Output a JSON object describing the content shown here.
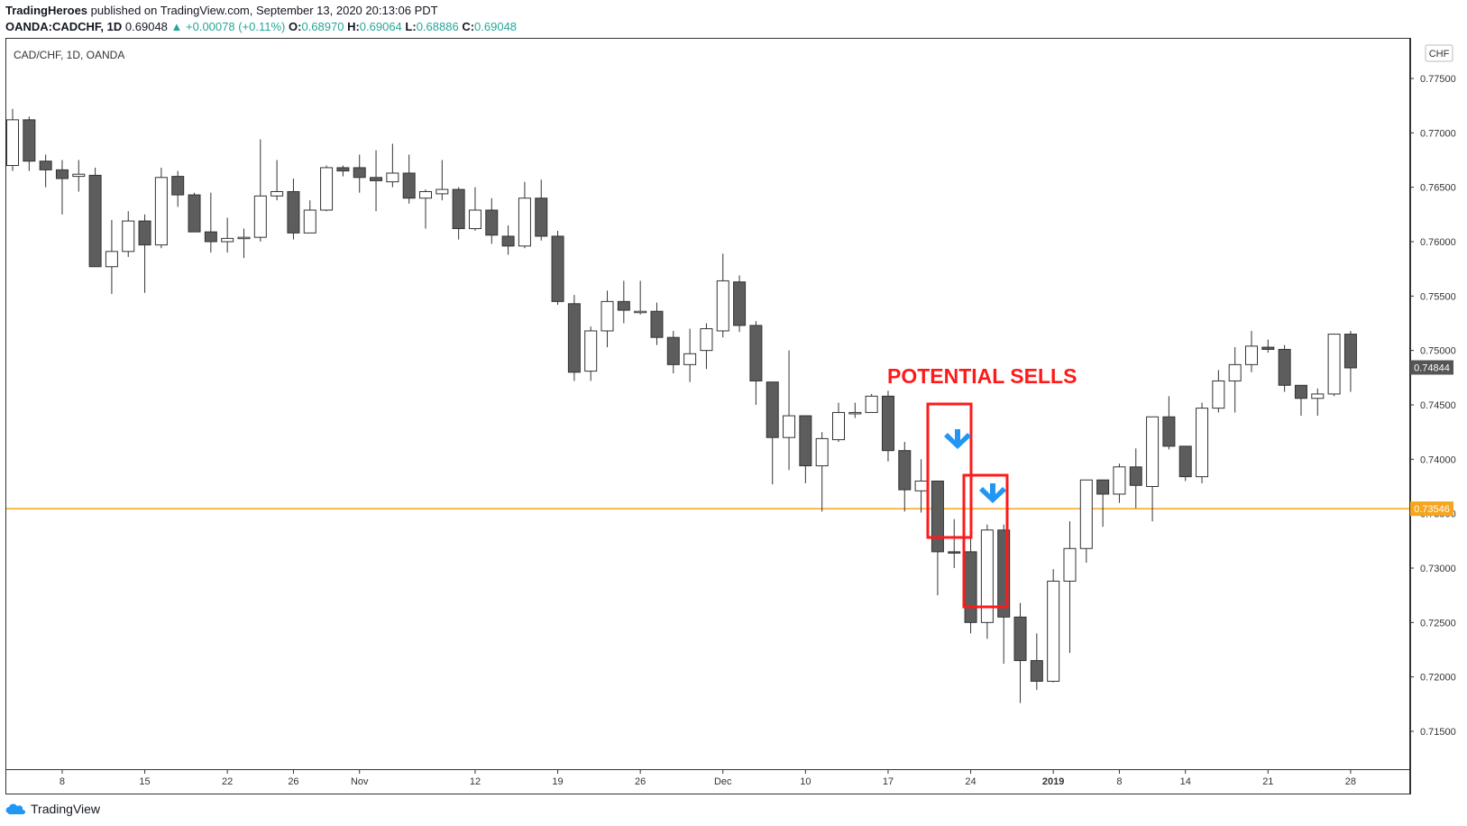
{
  "header": {
    "author": "TradingHeroes",
    "published_text": "published on TradingView.com, September 13, 2020 20:13:06 PDT",
    "symbol": "OANDA:CADCHF, 1D",
    "last": "0.69048",
    "change": "▲ +0.00078 (+0.11%)",
    "o_label": "O:",
    "o_value": "0.68970",
    "h_label": "H:",
    "h_value": "0.69064",
    "l_label": "L:",
    "l_value": "0.68886",
    "c_label": "C:",
    "c_value": "0.69048"
  },
  "pane": {
    "legend": "CAD/CHF, 1D, OANDA",
    "currency_button": "CHF"
  },
  "annotation": {
    "text": "POTENTIAL SELLS"
  },
  "footer": {
    "brand": "TradingView"
  },
  "colors": {
    "bear_fill": "#5d5d5d",
    "bull_fill": "#ffffff",
    "candle_border": "#333333",
    "hline": "#f7a51c",
    "annotation": "#ff1a1a",
    "arrow": "#2196f3"
  },
  "chart_data": {
    "type": "candlestick",
    "title": "CAD/CHF, 1D, OANDA",
    "ylim": [
      0.7125,
      0.7805
    ],
    "y_ticks": [
      "0.77500",
      "0.77000",
      "0.76500",
      "0.76000",
      "0.75500",
      "0.75000",
      "0.74500",
      "0.74000",
      "0.73500",
      "0.73000",
      "0.72500",
      "0.72000",
      "0.71500"
    ],
    "x_ticks": [
      {
        "label": "8",
        "i": 3
      },
      {
        "label": "15",
        "i": 8
      },
      {
        "label": "22",
        "i": 13
      },
      {
        "label": "26",
        "i": 17
      },
      {
        "label": "Nov",
        "i": 21
      },
      {
        "label": "12",
        "i": 28
      },
      {
        "label": "19",
        "i": 33
      },
      {
        "label": "26",
        "i": 38
      },
      {
        "label": "Dec",
        "i": 43
      },
      {
        "label": "10",
        "i": 48
      },
      {
        "label": "17",
        "i": 53
      },
      {
        "label": "24",
        "i": 58
      },
      {
        "label": "2019",
        "i": 63
      },
      {
        "label": "8",
        "i": 67
      },
      {
        "label": "14",
        "i": 71
      },
      {
        "label": "21",
        "i": 76
      },
      {
        "label": "28",
        "i": 81
      }
    ],
    "current_price_label": "0.74844",
    "current_price": 0.74844,
    "hline_label": "0.73546",
    "hline": 0.73546,
    "candles": [
      {
        "o": 0.767,
        "h": 0.7722,
        "l": 0.7665,
        "c": 0.7712
      },
      {
        "o": 0.7712,
        "h": 0.7715,
        "l": 0.7665,
        "c": 0.7674
      },
      {
        "o": 0.7674,
        "h": 0.768,
        "l": 0.765,
        "c": 0.7666
      },
      {
        "o": 0.7666,
        "h": 0.7675,
        "l": 0.7625,
        "c": 0.7658
      },
      {
        "o": 0.766,
        "h": 0.7675,
        "l": 0.7646,
        "c": 0.7662
      },
      {
        "o": 0.7661,
        "h": 0.7668,
        "l": 0.7577,
        "c": 0.7577
      },
      {
        "o": 0.7577,
        "h": 0.762,
        "l": 0.7552,
        "c": 0.7591
      },
      {
        "o": 0.7591,
        "h": 0.7628,
        "l": 0.7586,
        "c": 0.7619
      },
      {
        "o": 0.7619,
        "h": 0.7625,
        "l": 0.7553,
        "c": 0.7597
      },
      {
        "o": 0.7597,
        "h": 0.7668,
        "l": 0.7594,
        "c": 0.7659
      },
      {
        "o": 0.766,
        "h": 0.7665,
        "l": 0.7632,
        "c": 0.7643
      },
      {
        "o": 0.7643,
        "h": 0.7645,
        "l": 0.7609,
        "c": 0.7609
      },
      {
        "o": 0.7609,
        "h": 0.7645,
        "l": 0.759,
        "c": 0.76
      },
      {
        "o": 0.76,
        "h": 0.7622,
        "l": 0.759,
        "c": 0.7603
      },
      {
        "o": 0.7603,
        "h": 0.7612,
        "l": 0.7585,
        "c": 0.7604
      },
      {
        "o": 0.7604,
        "h": 0.7694,
        "l": 0.76,
        "c": 0.7642
      },
      {
        "o": 0.7642,
        "h": 0.7675,
        "l": 0.7638,
        "c": 0.7646
      },
      {
        "o": 0.7646,
        "h": 0.7658,
        "l": 0.7602,
        "c": 0.7608
      },
      {
        "o": 0.7608,
        "h": 0.7638,
        "l": 0.7608,
        "c": 0.7629
      },
      {
        "o": 0.7629,
        "h": 0.767,
        "l": 0.7628,
        "c": 0.7668
      },
      {
        "o": 0.7668,
        "h": 0.767,
        "l": 0.766,
        "c": 0.7665
      },
      {
        "o": 0.7668,
        "h": 0.768,
        "l": 0.7645,
        "c": 0.7659
      },
      {
        "o": 0.7659,
        "h": 0.7684,
        "l": 0.7628,
        "c": 0.7656
      },
      {
        "o": 0.7655,
        "h": 0.769,
        "l": 0.765,
        "c": 0.7663
      },
      {
        "o": 0.7663,
        "h": 0.768,
        "l": 0.7635,
        "c": 0.764
      },
      {
        "o": 0.764,
        "h": 0.7648,
        "l": 0.7612,
        "c": 0.7646
      },
      {
        "o": 0.7644,
        "h": 0.7675,
        "l": 0.7638,
        "c": 0.7648
      },
      {
        "o": 0.7648,
        "h": 0.765,
        "l": 0.7602,
        "c": 0.7612
      },
      {
        "o": 0.7612,
        "h": 0.765,
        "l": 0.761,
        "c": 0.7629
      },
      {
        "o": 0.7629,
        "h": 0.764,
        "l": 0.7598,
        "c": 0.7606
      },
      {
        "o": 0.7605,
        "h": 0.7615,
        "l": 0.7588,
        "c": 0.7596
      },
      {
        "o": 0.7596,
        "h": 0.7655,
        "l": 0.7594,
        "c": 0.764
      },
      {
        "o": 0.764,
        "h": 0.7657,
        "l": 0.7601,
        "c": 0.7605
      },
      {
        "o": 0.7605,
        "h": 0.761,
        "l": 0.7542,
        "c": 0.7545
      },
      {
        "o": 0.7543,
        "h": 0.7551,
        "l": 0.7472,
        "c": 0.748
      },
      {
        "o": 0.7481,
        "h": 0.7522,
        "l": 0.7472,
        "c": 0.7518
      },
      {
        "o": 0.7518,
        "h": 0.7555,
        "l": 0.7503,
        "c": 0.7545
      },
      {
        "o": 0.7545,
        "h": 0.7564,
        "l": 0.7525,
        "c": 0.7537
      },
      {
        "o": 0.7536,
        "h": 0.7564,
        "l": 0.7533,
        "c": 0.7536
      },
      {
        "o": 0.7536,
        "h": 0.7544,
        "l": 0.7505,
        "c": 0.7512
      },
      {
        "o": 0.7512,
        "h": 0.7518,
        "l": 0.7479,
        "c": 0.7487
      },
      {
        "o": 0.7487,
        "h": 0.752,
        "l": 0.7471,
        "c": 0.7497
      },
      {
        "o": 0.75,
        "h": 0.7525,
        "l": 0.7483,
        "c": 0.752
      },
      {
        "o": 0.7518,
        "h": 0.7589,
        "l": 0.7512,
        "c": 0.7564
      },
      {
        "o": 0.7563,
        "h": 0.7569,
        "l": 0.7517,
        "c": 0.7523
      },
      {
        "o": 0.7523,
        "h": 0.7527,
        "l": 0.745,
        "c": 0.7472
      },
      {
        "o": 0.7471,
        "h": 0.7471,
        "l": 0.7377,
        "c": 0.742
      },
      {
        "o": 0.742,
        "h": 0.75,
        "l": 0.739,
        "c": 0.744
      },
      {
        "o": 0.744,
        "h": 0.744,
        "l": 0.7378,
        "c": 0.7394
      },
      {
        "o": 0.7394,
        "h": 0.7425,
        "l": 0.7352,
        "c": 0.7419
      },
      {
        "o": 0.7418,
        "h": 0.7452,
        "l": 0.7416,
        "c": 0.7443
      },
      {
        "o": 0.7442,
        "h": 0.7452,
        "l": 0.7438,
        "c": 0.7443
      },
      {
        "o": 0.7443,
        "h": 0.746,
        "l": 0.7443,
        "c": 0.7458
      },
      {
        "o": 0.7458,
        "h": 0.7463,
        "l": 0.7398,
        "c": 0.7408
      },
      {
        "o": 0.7408,
        "h": 0.7416,
        "l": 0.7352,
        "c": 0.7372
      },
      {
        "o": 0.7371,
        "h": 0.74,
        "l": 0.7351,
        "c": 0.738
      },
      {
        "o": 0.738,
        "h": 0.738,
        "l": 0.7275,
        "c": 0.7315
      },
      {
        "o": 0.7315,
        "h": 0.7345,
        "l": 0.73,
        "c": 0.7314
      },
      {
        "o": 0.7315,
        "h": 0.733,
        "l": 0.724,
        "c": 0.725
      },
      {
        "o": 0.725,
        "h": 0.734,
        "l": 0.7235,
        "c": 0.7335
      },
      {
        "o": 0.7335,
        "h": 0.734,
        "l": 0.7212,
        "c": 0.7255
      },
      {
        "o": 0.7255,
        "h": 0.7268,
        "l": 0.7176,
        "c": 0.7215
      },
      {
        "o": 0.7215,
        "h": 0.724,
        "l": 0.7188,
        "c": 0.7196
      },
      {
        "o": 0.7196,
        "h": 0.7299,
        "l": 0.7195,
        "c": 0.7288
      },
      {
        "o": 0.7288,
        "h": 0.7343,
        "l": 0.7222,
        "c": 0.7318
      },
      {
        "o": 0.7318,
        "h": 0.7381,
        "l": 0.7305,
        "c": 0.7381
      },
      {
        "o": 0.7381,
        "h": 0.7381,
        "l": 0.7338,
        "c": 0.7368
      },
      {
        "o": 0.7368,
        "h": 0.7396,
        "l": 0.736,
        "c": 0.7393
      },
      {
        "o": 0.7393,
        "h": 0.741,
        "l": 0.7355,
        "c": 0.7376
      },
      {
        "o": 0.7375,
        "h": 0.7439,
        "l": 0.7343,
        "c": 0.7439
      },
      {
        "o": 0.7439,
        "h": 0.7458,
        "l": 0.7409,
        "c": 0.7412
      },
      {
        "o": 0.7412,
        "h": 0.7412,
        "l": 0.738,
        "c": 0.7384
      },
      {
        "o": 0.7384,
        "h": 0.7452,
        "l": 0.7378,
        "c": 0.7447
      },
      {
        "o": 0.7447,
        "h": 0.7482,
        "l": 0.7443,
        "c": 0.7472
      },
      {
        "o": 0.7472,
        "h": 0.7503,
        "l": 0.7443,
        "c": 0.7487
      },
      {
        "o": 0.7487,
        "h": 0.7518,
        "l": 0.748,
        "c": 0.7504
      },
      {
        "o": 0.7503,
        "h": 0.751,
        "l": 0.7498,
        "c": 0.7501
      },
      {
        "o": 0.7501,
        "h": 0.7505,
        "l": 0.7462,
        "c": 0.7468
      },
      {
        "o": 0.7468,
        "h": 0.7468,
        "l": 0.744,
        "c": 0.7456
      },
      {
        "o": 0.7456,
        "h": 0.7465,
        "l": 0.744,
        "c": 0.746
      },
      {
        "o": 0.746,
        "h": 0.7515,
        "l": 0.7458,
        "c": 0.7515
      },
      {
        "o": 0.7515,
        "h": 0.7518,
        "l": 0.7462,
        "c": 0.7484
      }
    ]
  }
}
